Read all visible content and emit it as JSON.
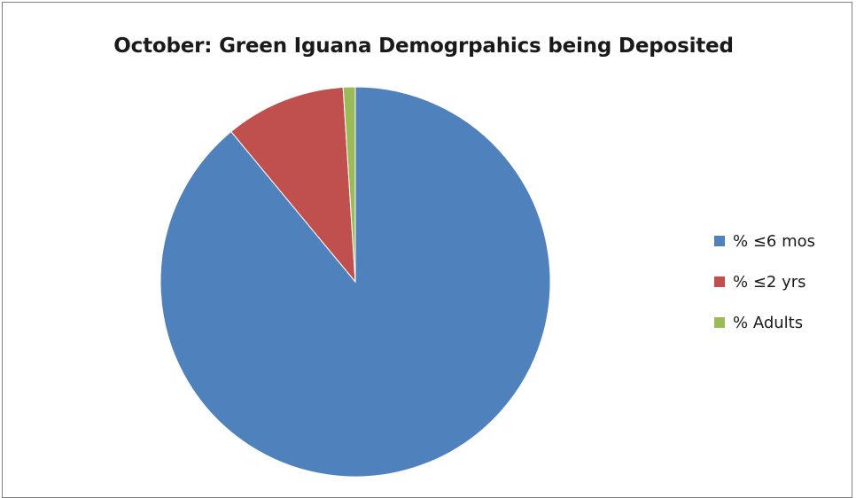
{
  "chart_data": {
    "type": "pie",
    "title": "October: Green Iguana Demogrpahics being Deposited",
    "categories": [
      "% ≤6 mos",
      "% ≤2 yrs",
      "% Adults"
    ],
    "values": [
      89,
      10,
      1
    ],
    "colors": [
      "#4f81bd",
      "#c0504d",
      "#9bbb59"
    ],
    "start_angle_deg": 0,
    "direction": "clockwise",
    "legend_position": "right"
  }
}
